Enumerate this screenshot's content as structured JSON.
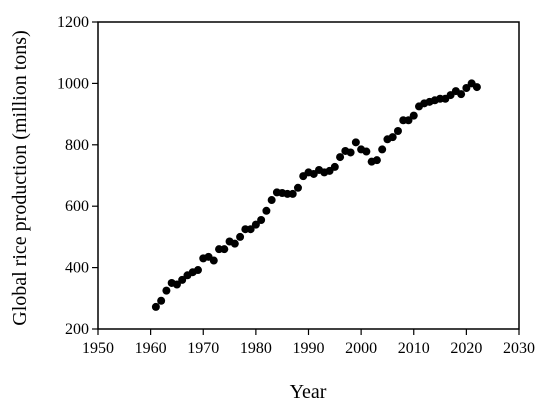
{
  "chart_data": {
    "type": "scatter",
    "xlabel": "Year",
    "ylabel": "Global rice production (million tons)",
    "xlim": [
      1950,
      2030
    ],
    "ylim": [
      200,
      1200
    ],
    "x_ticks": [
      1950,
      1960,
      1970,
      1980,
      1990,
      2000,
      2010,
      2020,
      2030
    ],
    "y_ticks": [
      200,
      400,
      600,
      800,
      1000,
      1200
    ],
    "grid": false,
    "legend": "none",
    "marker_color": "#000000",
    "series": [
      {
        "x": [
          1961,
          1962,
          1963,
          1964,
          1965,
          1966,
          1967,
          1968,
          1969,
          1970,
          1971,
          1972,
          1973,
          1974,
          1975,
          1976,
          1977,
          1978,
          1979,
          1980,
          1981,
          1982,
          1983,
          1984,
          1985,
          1986,
          1987,
          1988,
          1989,
          1990,
          1991,
          1992,
          1993,
          1994,
          1995,
          1996,
          1997,
          1998,
          1999,
          2000,
          2001,
          2002,
          2003,
          2004,
          2005,
          2006,
          2007,
          2008,
          2009,
          2010,
          2011,
          2012,
          2013,
          2014,
          2015,
          2016,
          2017,
          2018,
          2019,
          2020,
          2021,
          2022
        ],
        "y": [
          272,
          292,
          325,
          350,
          345,
          360,
          375,
          385,
          392,
          430,
          435,
          423,
          460,
          460,
          485,
          478,
          500,
          525,
          525,
          540,
          555,
          585,
          620,
          645,
          643,
          640,
          640,
          660,
          698,
          710,
          705,
          718,
          710,
          715,
          728,
          760,
          780,
          775,
          808,
          785,
          778,
          745,
          750,
          785,
          818,
          825,
          845,
          880,
          880,
          895,
          925,
          935,
          940,
          945,
          950,
          950,
          962,
          975,
          965,
          985,
          1000,
          988
        ]
      }
    ]
  }
}
